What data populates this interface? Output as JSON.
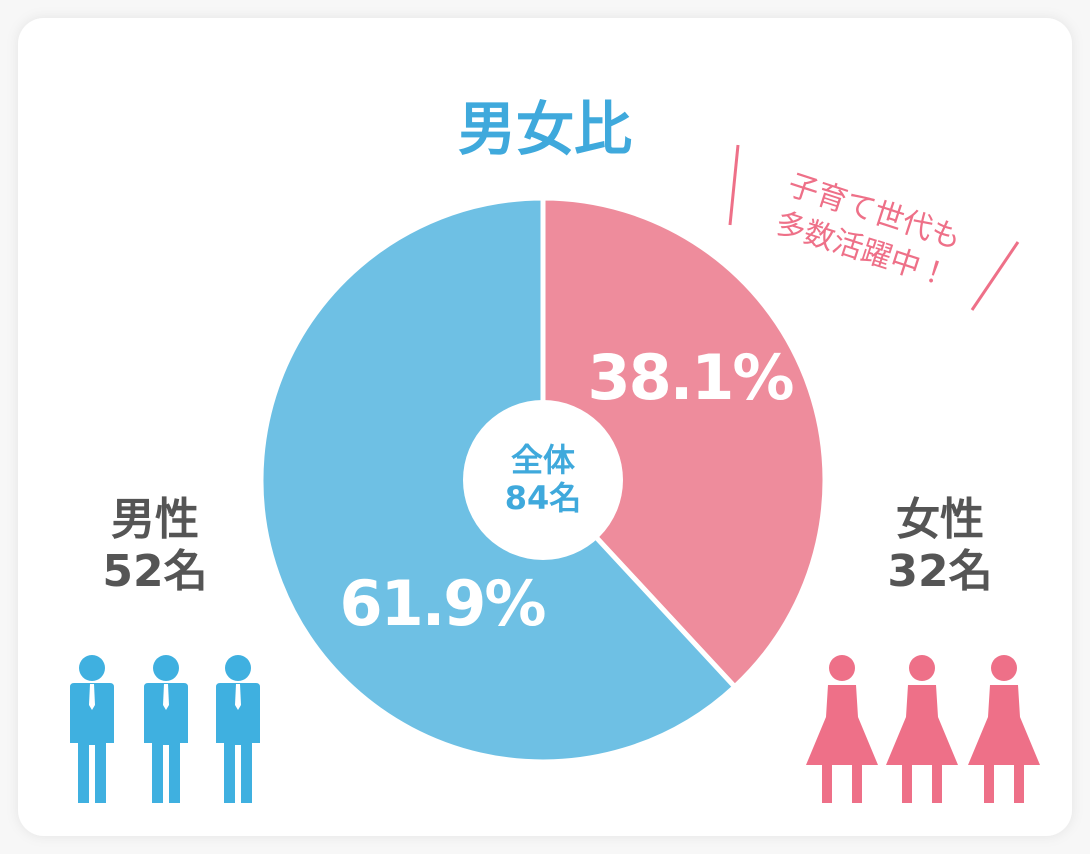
{
  "chart_data": {
    "type": "donut",
    "title": "男女比",
    "center_label": [
      "全体",
      "84名"
    ],
    "categories": [
      "女性",
      "男性"
    ],
    "values": [
      38.1,
      61.9
    ],
    "value_labels": [
      "38.1%",
      "61.9%"
    ],
    "counts": [
      "32名",
      "52名"
    ],
    "colors": [
      "#ee8c9c",
      "#6ec0e4"
    ],
    "annotation": [
      "子育て世代も",
      "多数活躍中！"
    ]
  }
}
